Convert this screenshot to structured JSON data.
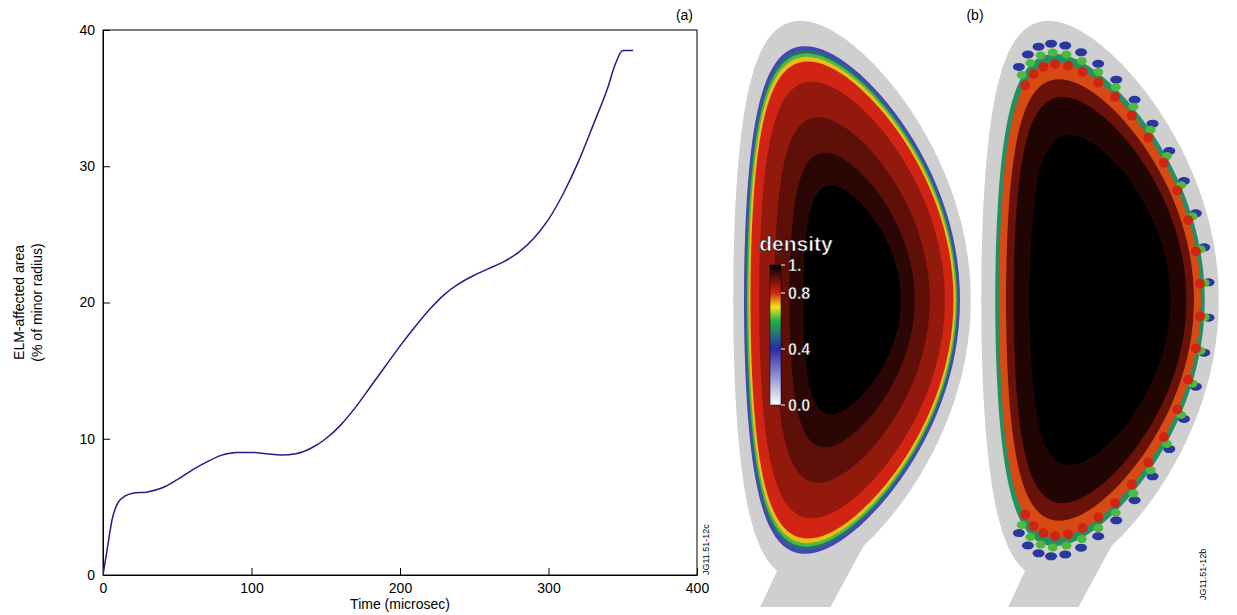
{
  "chart_data": [
    {
      "type": "line",
      "title": "(a)",
      "x_label": "Time (microsec)",
      "y_label": [
        "ELM-affected area",
        "(% of minor radius)"
      ],
      "annotations": [
        "JG11.51-12c"
      ],
      "x": [
        0,
        3,
        6,
        10,
        15,
        20,
        30,
        40,
        50,
        60,
        70,
        80,
        90,
        100,
        110,
        120,
        130,
        140,
        150,
        160,
        170,
        180,
        190,
        200,
        210,
        220,
        230,
        240,
        250,
        260,
        270,
        280,
        290,
        300,
        310,
        320,
        330,
        340,
        345,
        350,
        357
      ],
      "values": [
        0,
        2,
        4,
        5.3,
        5.8,
        6,
        6.1,
        6.4,
        7,
        7.7,
        8.3,
        8.8,
        9,
        9,
        8.9,
        8.8,
        8.9,
        9.3,
        10,
        11,
        12.3,
        13.8,
        15.3,
        16.8,
        18.2,
        19.5,
        20.6,
        21.4,
        22,
        22.5,
        23,
        23.7,
        24.7,
        26.1,
        28,
        30.3,
        33,
        35.8,
        37.5,
        38.5,
        38.5
      ],
      "color": "#1f1f8c",
      "xlim": [
        0,
        400
      ],
      "xticks": [
        0,
        100,
        200,
        300,
        400
      ],
      "ylim": [
        0,
        40
      ],
      "yticks": [
        0,
        10,
        20,
        30,
        40
      ],
      "grid": false
    },
    {
      "type": "image",
      "title": "(b)",
      "annotations": [
        "JG11.51-12b"
      ],
      "colorbar_label": "density",
      "colorbar_range": [
        0,
        1
      ],
      "colorbar_ticks": [
        {
          "value": 1,
          "label": "1."
        },
        {
          "value": 0.8,
          "label": "0.8"
        },
        {
          "value": 0.4,
          "label": "0.4"
        },
        {
          "value": 0,
          "label": "0.0"
        }
      ]
    }
  ]
}
